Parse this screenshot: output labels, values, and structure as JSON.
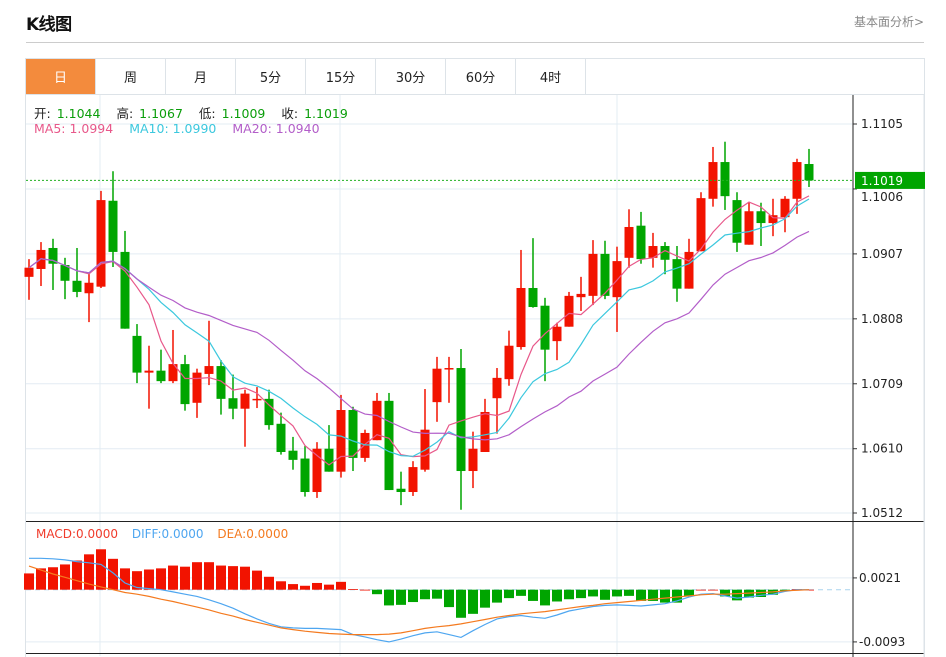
{
  "header": {
    "title": "K线图",
    "link": "基本面分析>"
  },
  "tabs": [
    {
      "label": "日",
      "active": true
    },
    {
      "label": "周"
    },
    {
      "label": "月"
    },
    {
      "label": "5分"
    },
    {
      "label": "15分"
    },
    {
      "label": "30分"
    },
    {
      "label": "60分"
    },
    {
      "label": "4时"
    }
  ],
  "ohlc_info": {
    "open_label": "开:",
    "open": "1.1044",
    "high_label": "高:",
    "high": "1.1067",
    "low_label": "低:",
    "low": "1.1009",
    "close_label": "收:",
    "close": "1.1019"
  },
  "ma_info": {
    "ma5": "MA5: 1.0994",
    "ma10": "MA10: 1.0990",
    "ma20": "MA20: 1.0940"
  },
  "macd_info": {
    "macd": "MACD:0.0000",
    "diff": "DIFF:0.0000",
    "dea": "DEA:0.0000"
  },
  "colors": {
    "up": "#f21300",
    "down": "#00a500",
    "ma5": "#e8588a",
    "ma10": "#3cc8de",
    "ma20": "#b35ec9",
    "diff": "#4ea6f0",
    "dea": "#f47a1f",
    "accent": "#f38b3d"
  },
  "chart_data": {
    "type": "candlestick",
    "price_axis": {
      "ticks": [
        "1.1105",
        "1.1006",
        "1.0907",
        "1.0808",
        "1.0709",
        "1.0610",
        "1.0512"
      ],
      "range": [
        1.0512,
        1.1105
      ]
    },
    "last_price": "1.1019",
    "candles": [
      [
        1.0872,
        1.0899,
        1.0837,
        1.0886
      ],
      [
        1.0884,
        1.0925,
        1.0858,
        1.0913
      ],
      [
        1.0916,
        1.093,
        1.0852,
        1.0892
      ],
      [
        1.089,
        1.0901,
        1.0838,
        1.0866
      ],
      [
        1.0866,
        1.0916,
        1.0841,
        1.0849
      ],
      [
        1.0847,
        1.0878,
        1.0803,
        1.0863
      ],
      [
        1.0857,
        1.1003,
        1.0855,
        1.0989
      ],
      [
        1.0988,
        1.1033,
        1.0887,
        1.091
      ],
      [
        1.091,
        1.0942,
        1.0793,
        1.0793
      ],
      [
        1.0782,
        1.08,
        1.071,
        1.0726
      ],
      [
        1.0726,
        1.0767,
        1.0671,
        1.0729
      ],
      [
        1.0729,
        1.0761,
        1.071,
        1.0713
      ],
      [
        1.0713,
        1.0791,
        1.071,
        1.0739
      ],
      [
        1.0739,
        1.0753,
        1.0668,
        1.0678
      ],
      [
        1.068,
        1.0732,
        1.0657,
        1.0726
      ],
      [
        1.0724,
        1.0805,
        1.0707,
        1.0736
      ],
      [
        1.0736,
        1.0745,
        1.0662,
        1.0686
      ],
      [
        1.0687,
        1.0723,
        1.0655,
        1.0671
      ],
      [
        1.0671,
        1.07,
        1.0613,
        1.0694
      ],
      [
        1.0684,
        1.0704,
        1.0672,
        1.0686
      ],
      [
        1.0686,
        1.07,
        1.0639,
        1.0646
      ],
      [
        1.0648,
        1.0665,
        1.0601,
        1.0605
      ],
      [
        1.0607,
        1.0628,
        1.0578,
        1.0593
      ],
      [
        1.0595,
        1.0614,
        1.0537,
        1.0544
      ],
      [
        1.0544,
        1.062,
        1.0535,
        1.061
      ],
      [
        1.061,
        1.0646,
        1.0575,
        1.0575
      ],
      [
        1.0575,
        1.0692,
        1.0566,
        1.0669
      ],
      [
        1.0669,
        1.0674,
        1.0576,
        1.0596
      ],
      [
        1.0596,
        1.0639,
        1.059,
        1.0634
      ],
      [
        1.0623,
        1.0695,
        1.0623,
        1.0683
      ],
      [
        1.0683,
        1.0695,
        1.0547,
        1.0547
      ],
      [
        1.0549,
        1.0575,
        1.0524,
        1.0544
      ],
      [
        1.0544,
        1.0591,
        1.0538,
        1.0582
      ],
      [
        1.0578,
        1.0701,
        1.0575,
        1.0639
      ],
      [
        1.0681,
        1.075,
        1.0651,
        1.0732
      ],
      [
        1.0732,
        1.075,
        1.068,
        1.0733
      ],
      [
        1.0733,
        1.0762,
        1.0517,
        1.0576
      ],
      [
        1.0576,
        1.0636,
        1.055,
        1.061
      ],
      [
        1.0605,
        1.0686,
        1.0605,
        1.0666
      ],
      [
        1.0687,
        1.0733,
        1.0633,
        1.0718
      ],
      [
        1.0716,
        1.079,
        1.0706,
        1.0767
      ],
      [
        1.0765,
        1.0913,
        1.0761,
        1.0855
      ],
      [
        1.0855,
        1.0931,
        1.0825,
        1.0826
      ],
      [
        1.0828,
        1.084,
        1.0713,
        1.0761
      ],
      [
        1.0774,
        1.0802,
        1.0745,
        1.0796
      ],
      [
        1.0796,
        1.0849,
        1.0796,
        1.0843
      ],
      [
        1.0841,
        1.0872,
        1.082,
        1.0846
      ],
      [
        1.0843,
        1.0928,
        1.0829,
        1.0907
      ],
      [
        1.0907,
        1.0927,
        1.0838,
        1.0843
      ],
      [
        1.0841,
        1.0918,
        1.0788,
        1.0896
      ],
      [
        1.0901,
        1.0975,
        1.0886,
        1.0948
      ],
      [
        1.095,
        1.0971,
        1.0892,
        1.0899
      ],
      [
        1.0901,
        1.0939,
        1.0886,
        1.0919
      ],
      [
        1.0919,
        1.0925,
        1.0876,
        1.0898
      ],
      [
        1.0899,
        1.0919,
        1.0834,
        1.0854
      ],
      [
        1.0854,
        1.093,
        1.0854,
        1.091
      ],
      [
        1.0911,
        1.1001,
        1.0911,
        1.0992
      ],
      [
        1.0991,
        1.107,
        1.0979,
        1.1047
      ],
      [
        1.1047,
        1.1078,
        1.0974,
        1.0995
      ],
      [
        1.0989,
        1.1001,
        1.091,
        1.0924
      ],
      [
        1.0921,
        1.0985,
        1.0921,
        1.0972
      ],
      [
        1.0972,
        1.0985,
        1.0919,
        1.0954
      ],
      [
        1.0954,
        1.0991,
        1.0934,
        1.0966
      ],
      [
        1.0963,
        1.0995,
        1.094,
        1.0991
      ],
      [
        1.0991,
        1.1052,
        1.0968,
        1.1047
      ],
      [
        1.1044,
        1.1067,
        1.1009,
        1.1019
      ]
    ],
    "macd_axis": {
      "ticks": [
        "0.0021",
        "-0.0093"
      ]
    },
    "macd_hist": [
      0.0029,
      0.0038,
      0.004,
      0.0045,
      0.0052,
      0.0063,
      0.0072,
      0.0055,
      0.0038,
      0.0033,
      0.0036,
      0.0038,
      0.0043,
      0.0041,
      0.0049,
      0.0049,
      0.0043,
      0.0042,
      0.0041,
      0.0034,
      0.0023,
      0.0015,
      0.001,
      0.0007,
      0.0012,
      0.0009,
      0.0014,
      0.0001,
      0.0,
      -0.0008,
      -0.0028,
      -0.0027,
      -0.0022,
      -0.0017,
      -0.0016,
      -0.0031,
      -0.005,
      -0.0043,
      -0.0032,
      -0.0023,
      -0.0015,
      -0.0011,
      -0.002,
      -0.0028,
      -0.0021,
      -0.0017,
      -0.0015,
      -0.0012,
      -0.0018,
      -0.0012,
      -0.0011,
      -0.002,
      -0.002,
      -0.0023,
      -0.0023,
      -0.0011,
      0.0,
      0.0,
      -0.0012,
      -0.0019,
      -0.0014,
      -0.0013,
      -0.0009,
      -0.0002,
      0.0001,
      0.0
    ],
    "diff": [
      0.0056,
      0.0056,
      0.0055,
      0.0053,
      0.005,
      0.0048,
      0.0045,
      0.003,
      0.0012,
      0.0004,
      0.0002,
      0.0,
      -0.0004,
      -0.0008,
      -0.0012,
      -0.0018,
      -0.0025,
      -0.0033,
      -0.0043,
      -0.0052,
      -0.006,
      -0.0066,
      -0.0068,
      -0.0069,
      -0.0069,
      -0.007,
      -0.0071,
      -0.008,
      -0.0084,
      -0.0089,
      -0.0093,
      -0.0088,
      -0.0082,
      -0.0077,
      -0.0075,
      -0.008,
      -0.0085,
      -0.0073,
      -0.0062,
      -0.0052,
      -0.0048,
      -0.0046,
      -0.0049,
      -0.0051,
      -0.0045,
      -0.0038,
      -0.0034,
      -0.003,
      -0.0028,
      -0.0027,
      -0.0028,
      -0.0029,
      -0.0027,
      -0.0025,
      -0.002,
      -0.0013,
      -0.0008,
      -0.0007,
      -0.0011,
      -0.0015,
      -0.0013,
      -0.001,
      -0.0008,
      -0.0003,
      0.0,
      0.0
    ],
    "dea": [
      0.0042,
      0.0035,
      0.0028,
      0.0022,
      0.0016,
      0.001,
      0.0005,
      0.0,
      -0.0005,
      -0.0008,
      -0.0012,
      -0.0017,
      -0.0021,
      -0.0026,
      -0.0031,
      -0.0036,
      -0.0042,
      -0.0047,
      -0.0053,
      -0.0058,
      -0.0063,
      -0.0068,
      -0.0071,
      -0.0074,
      -0.0076,
      -0.0078,
      -0.0079,
      -0.008,
      -0.008,
      -0.008,
      -0.0079,
      -0.0077,
      -0.0073,
      -0.0069,
      -0.0066,
      -0.0064,
      -0.0061,
      -0.0057,
      -0.0053,
      -0.0049,
      -0.0046,
      -0.0043,
      -0.0041,
      -0.0039,
      -0.0036,
      -0.0033,
      -0.003,
      -0.0028,
      -0.0025,
      -0.0023,
      -0.0021,
      -0.0019,
      -0.0017,
      -0.0015,
      -0.0013,
      -0.0011,
      -0.0009,
      -0.0008,
      -0.0008,
      -0.0007,
      -0.0006,
      -0.0005,
      -0.0004,
      -0.0002,
      -0.0001,
      0.0
    ]
  }
}
